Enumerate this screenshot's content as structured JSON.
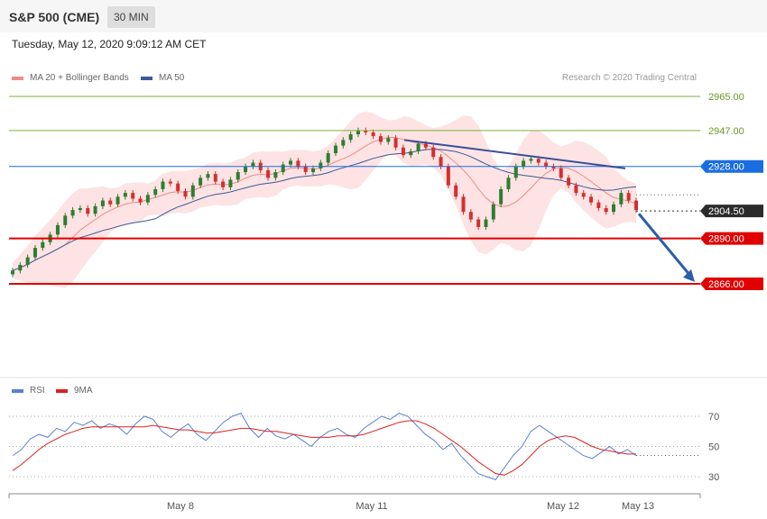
{
  "header": {
    "title": "S&P 500 (CME)",
    "timeframe": "30 MIN"
  },
  "datetime": "Tuesday, May 12, 2020 9:09:12 AM CET",
  "legend": {
    "ma20": {
      "label": "MA 20 + Bollinger Bands",
      "color": "#f08a8a"
    },
    "ma50": {
      "label": "MA 50",
      "color": "#3a5a9a"
    },
    "rsi": {
      "label": "RSI",
      "color": "#5b7fd4"
    },
    "rsi_ma": {
      "label": "9MA",
      "color": "#e02020"
    }
  },
  "credit": "Research © 2020 Trading Central",
  "chart_data": [
    {
      "type": "candlestick",
      "title": "S&P 500 (CME) 30 MIN",
      "ylim": [
        2844,
        2978
      ],
      "x_ticks": [
        "May 8",
        "May 11",
        "May 12",
        "May 13"
      ],
      "price_levels": [
        {
          "label": "2965.00",
          "value": 2965.0,
          "kind": "target",
          "color": "#7bb03a"
        },
        {
          "label": "2947.00",
          "value": 2947.0,
          "kind": "target",
          "color": "#7bb03a"
        },
        {
          "label": "2928.00",
          "value": 2928.0,
          "kind": "pivot",
          "color": "#1a6de0"
        },
        {
          "label": "2904.50",
          "value": 2904.5,
          "kind": "last",
          "color": "#2b2b2b"
        },
        {
          "label": "2890.00",
          "value": 2890.0,
          "kind": "support",
          "color": "#e00000"
        },
        {
          "label": "2866.00",
          "value": 2866.0,
          "kind": "support",
          "color": "#e00000"
        }
      ],
      "close": [
        2873,
        2876,
        2880,
        2885,
        2888,
        2892,
        2897,
        2902,
        2905,
        2906,
        2903,
        2907,
        2910,
        2908,
        2912,
        2914,
        2911,
        2909,
        2913,
        2916,
        2920,
        2919,
        2915,
        2912,
        2918,
        2922,
        2924,
        2920,
        2917,
        2921,
        2925,
        2928,
        2930,
        2926,
        2922,
        2925,
        2929,
        2931,
        2928,
        2925,
        2927,
        2930,
        2935,
        2939,
        2942,
        2945,
        2947,
        2946,
        2944,
        2941,
        2943,
        2938,
        2934,
        2936,
        2940,
        2938,
        2933,
        2928,
        2918,
        2912,
        2904,
        2900,
        2896,
        2900,
        2908,
        2916,
        2922,
        2928,
        2931,
        2932,
        2930,
        2928,
        2927,
        2922,
        2918,
        2914,
        2912,
        2909,
        2906,
        2904,
        2908,
        2914,
        2910,
        2905
      ]
    },
    {
      "type": "line",
      "title": "RSI",
      "y_ticks": [
        70,
        50,
        30
      ],
      "series": [
        {
          "name": "RSI",
          "values": [
            44,
            48,
            55,
            58,
            56,
            62,
            60,
            66,
            64,
            67,
            62,
            65,
            63,
            58,
            65,
            70,
            68,
            60,
            56,
            61,
            65,
            58,
            54,
            60,
            66,
            70,
            72,
            62,
            56,
            62,
            57,
            55,
            58,
            54,
            50,
            56,
            60,
            62,
            58,
            56,
            62,
            66,
            70,
            68,
            72,
            70,
            64,
            58,
            54,
            48,
            52,
            44,
            38,
            32,
            30,
            28,
            36,
            44,
            50,
            60,
            64,
            60,
            56,
            52,
            48,
            44,
            42,
            46,
            50,
            45,
            48,
            44
          ],
          "color": "#5b7fd4"
        },
        {
          "name": "9MA",
          "values": [
            34,
            38,
            43,
            48,
            52,
            55,
            58,
            60,
            62,
            63,
            63,
            63,
            63,
            63,
            63,
            63,
            64,
            63,
            62,
            61,
            61,
            60,
            59,
            59,
            60,
            61,
            62,
            62,
            61,
            60,
            60,
            59,
            58,
            57,
            56,
            56,
            56,
            57,
            57,
            57,
            58,
            60,
            62,
            64,
            66,
            67,
            67,
            65,
            62,
            58,
            54,
            50,
            45,
            40,
            36,
            32,
            31,
            34,
            38,
            44,
            50,
            54,
            56,
            57,
            56,
            53,
            50,
            48,
            47,
            46,
            45,
            45
          ],
          "color": "#e02020"
        }
      ]
    }
  ]
}
